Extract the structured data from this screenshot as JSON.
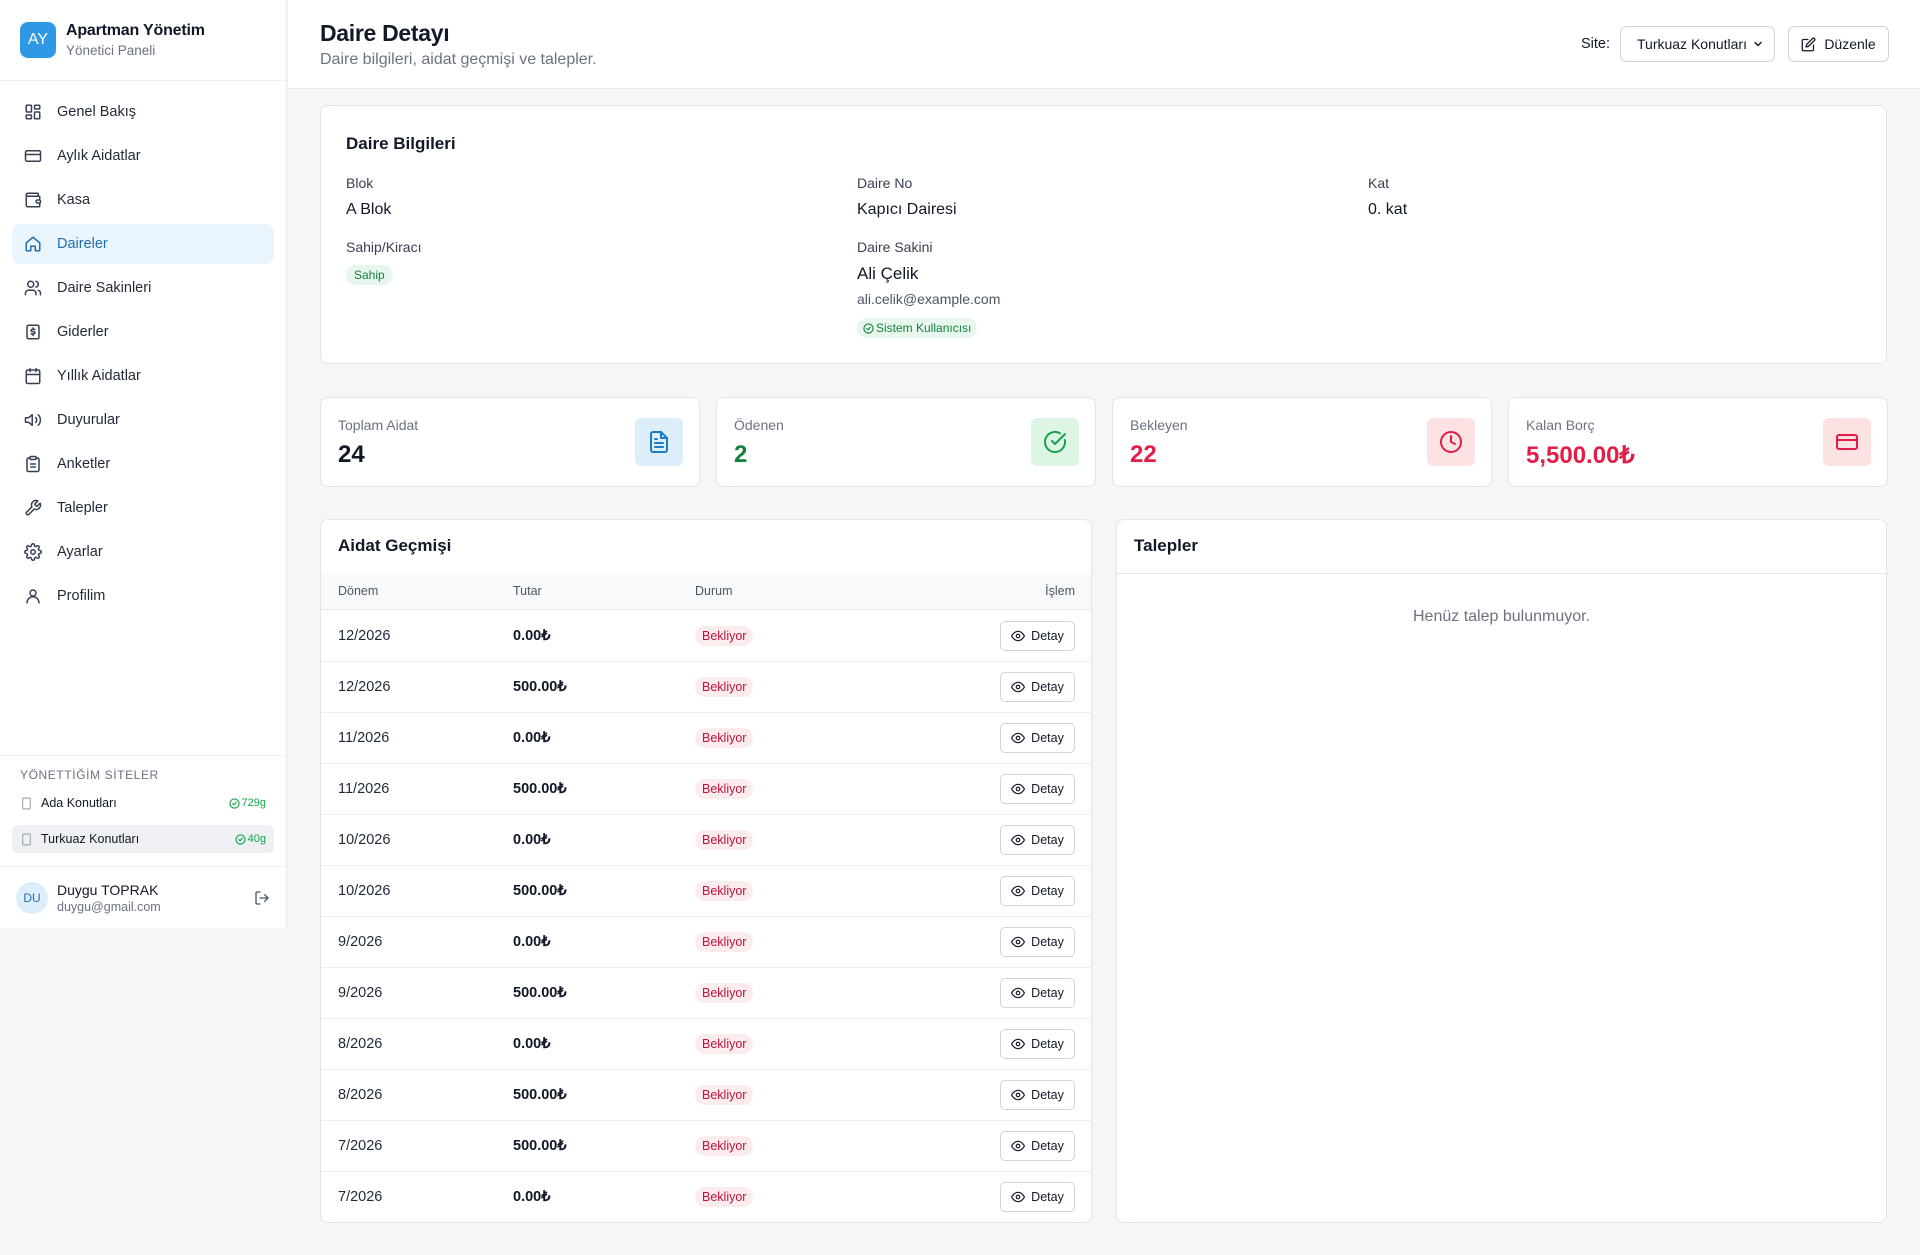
{
  "brand": {
    "logo": "AY",
    "title": "Apartman Yönetim",
    "subtitle": "Yönetici Paneli"
  },
  "nav": [
    {
      "label": "Genel Bakış",
      "icon": "dashboard-icon",
      "active": false
    },
    {
      "label": "Aylık Aidatlar",
      "icon": "credit-card-icon",
      "active": false
    },
    {
      "label": "Kasa",
      "icon": "wallet-icon",
      "active": false
    },
    {
      "label": "Daireler",
      "icon": "home-icon",
      "active": true
    },
    {
      "label": "Daire Sakinleri",
      "icon": "users-icon",
      "active": false
    },
    {
      "label": "Giderler",
      "icon": "receipt-icon",
      "active": false
    },
    {
      "label": "Yıllık Aidatlar",
      "icon": "calendar-icon",
      "active": false
    },
    {
      "label": "Duyurular",
      "icon": "megaphone-icon",
      "active": false
    },
    {
      "label": "Anketler",
      "icon": "clipboard-icon",
      "active": false
    },
    {
      "label": "Talepler",
      "icon": "wrench-icon",
      "active": false
    },
    {
      "label": "Ayarlar",
      "icon": "gear-icon",
      "active": false
    },
    {
      "label": "Profilim",
      "icon": "user-icon",
      "active": false
    }
  ],
  "sites": {
    "title": "YÖNETTİĞİM SİTELER",
    "items": [
      {
        "name": "Ada Konutları",
        "badge": "729g",
        "active": false
      },
      {
        "name": "Turkuaz Konutları",
        "badge": "40g",
        "active": true
      }
    ]
  },
  "user": {
    "initials": "DU",
    "name": "Duygu TOPRAK",
    "email": "duygu@gmail.com"
  },
  "header": {
    "title": "Daire Detayı",
    "subtitle": "Daire bilgileri, aidat geçmişi ve talepler.",
    "site_label": "Site:",
    "site_value": "Turkuaz Konutları",
    "edit_label": "Düzenle"
  },
  "info": {
    "title": "Daire Bilgileri",
    "blok_label": "Blok",
    "blok_value": "A Blok",
    "daire_no_label": "Daire No",
    "daire_no_value": "Kapıcı Dairesi",
    "kat_label": "Kat",
    "kat_value": "0. kat",
    "sahip_label": "Sahip/Kiracı",
    "sahip_badge": "Sahip",
    "sakin_label": "Daire Sakini",
    "sakin_name": "Ali Çelik",
    "sakin_email": "ali.celik@example.com",
    "sakin_badge": "Sistem Kullanıcısı"
  },
  "stats": [
    {
      "label": "Toplam Aidat",
      "value": "24",
      "color": "#111827",
      "bg": "#dbeefa",
      "icon_color": "#1f7cc4",
      "icon": "document-icon"
    },
    {
      "label": "Ödenen",
      "value": "2",
      "color": "#15803d",
      "bg": "#dcf5e5",
      "icon_color": "#16a34a",
      "icon": "check-circle-icon"
    },
    {
      "label": "Bekleyen",
      "value": "22",
      "color": "#e11d48",
      "bg": "#fde2e4",
      "icon_color": "#e11d48",
      "icon": "clock-icon"
    },
    {
      "label": "Kalan Borç",
      "value": "5,500.00₺",
      "color": "#e11d48",
      "bg": "#fde2e4",
      "icon_color": "#e11d48",
      "icon": "credit-card-icon"
    }
  ],
  "aidat": {
    "title": "Aidat Geçmişi",
    "columns": {
      "donem": "Dönem",
      "tutar": "Tutar",
      "durum": "Durum",
      "islem": "İşlem"
    },
    "rows": [
      {
        "donem": "12/2026",
        "tutar": "0.00₺",
        "durum": "Bekliyor",
        "action": "Detay"
      },
      {
        "donem": "12/2026",
        "tutar": "500.00₺",
        "durum": "Bekliyor",
        "action": "Detay"
      },
      {
        "donem": "11/2026",
        "tutar": "0.00₺",
        "durum": "Bekliyor",
        "action": "Detay"
      },
      {
        "donem": "11/2026",
        "tutar": "500.00₺",
        "durum": "Bekliyor",
        "action": "Detay"
      },
      {
        "donem": "10/2026",
        "tutar": "0.00₺",
        "durum": "Bekliyor",
        "action": "Detay"
      },
      {
        "donem": "10/2026",
        "tutar": "500.00₺",
        "durum": "Bekliyor",
        "action": "Detay"
      },
      {
        "donem": "9/2026",
        "tutar": "0.00₺",
        "durum": "Bekliyor",
        "action": "Detay"
      },
      {
        "donem": "9/2026",
        "tutar": "500.00₺",
        "durum": "Bekliyor",
        "action": "Detay"
      },
      {
        "donem": "8/2026",
        "tutar": "0.00₺",
        "durum": "Bekliyor",
        "action": "Detay"
      },
      {
        "donem": "8/2026",
        "tutar": "500.00₺",
        "durum": "Bekliyor",
        "action": "Detay"
      },
      {
        "donem": "7/2026",
        "tutar": "500.00₺",
        "durum": "Bekliyor",
        "action": "Detay"
      },
      {
        "donem": "7/2026",
        "tutar": "0.00₺",
        "durum": "Bekliyor",
        "action": "Detay"
      }
    ]
  },
  "talepler": {
    "title": "Talepler",
    "empty": "Henüz talep bulunmuyor."
  }
}
